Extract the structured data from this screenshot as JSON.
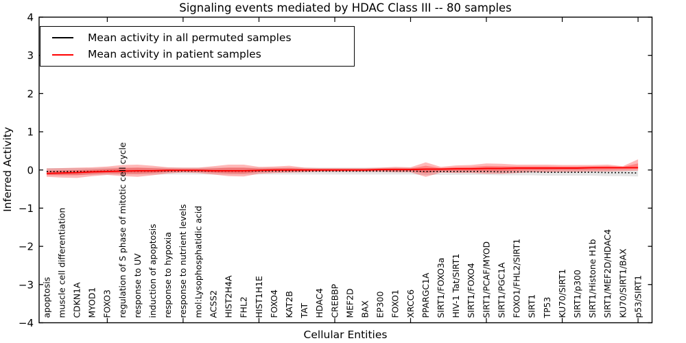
{
  "title": "Signaling events mediated by HDAC Class III -- 80 samples",
  "axes": {
    "ylabel": "Inferred Activity",
    "xlabel": "Cellular Entities",
    "ylim": [
      -4,
      4
    ],
    "ytick_values": [
      -4,
      -3,
      -2,
      -1,
      0,
      1,
      2,
      3,
      4
    ],
    "ytick_labels": [
      "−4",
      "−3",
      "−2",
      "−1",
      "0",
      "1",
      "2",
      "3",
      "4"
    ]
  },
  "legend": {
    "entries": [
      {
        "label": "Mean activity in all permuted samples",
        "color": "#000000"
      },
      {
        "label": "Mean activity in patient samples",
        "color": "#ff0000"
      }
    ]
  },
  "chart_data": {
    "type": "line",
    "title": "Signaling events mediated by HDAC Class III -- 80 samples",
    "xlabel": "Cellular Entities",
    "ylabel": "Inferred Activity",
    "ylim": [
      -4,
      4
    ],
    "grid": false,
    "legend_position": "upper left",
    "x_major_tick_every": 5,
    "categories": [
      "apoptosis",
      "muscle cell differentiation",
      "CDKN1A",
      "MYOD1",
      "FOXO3",
      "regulation of S phase of mitotic cell cycle",
      "response to UV",
      "induction of apoptosis",
      "response to hypoxia",
      "response to nutrient levels",
      "mol:Lysophosphatidic acid",
      "ACSS2",
      "HIST2H4A",
      "FHL2",
      "HIST1H1E",
      "FOXO4",
      "KAT2B",
      "TAT",
      "HDAC4",
      "CREBBP",
      "MEF2D",
      "BAX",
      "EP300",
      "FOXO1",
      "XRCC6",
      "PPARGC1A",
      "SIRT1/FOXO3a",
      "HIV-1 Tat/SIRT1",
      "SIRT1/FOXO4",
      "SIRT1/PCAF/MYOD",
      "SIRT1/PGC1A",
      "FOXO1/FHL2/SIRT1",
      "SIRT1",
      "TP53",
      "KU70/SIRT1",
      "SIRT1/p300",
      "SIRT1/Histone H1b",
      "SIRT1/MEF2D/HDAC4",
      "KU70/SIRT1/BAX",
      "p53/SIRT1"
    ],
    "series": [
      {
        "name": "Mean activity in all permuted samples",
        "color": "#000000",
        "linestyle": "dotted",
        "values": [
          -0.04,
          -0.04,
          -0.04,
          -0.04,
          -0.03,
          -0.03,
          -0.03,
          -0.03,
          -0.03,
          -0.03,
          -0.03,
          -0.03,
          -0.03,
          -0.03,
          -0.03,
          -0.03,
          -0.03,
          -0.03,
          -0.03,
          -0.03,
          -0.03,
          -0.03,
          -0.03,
          -0.03,
          -0.03,
          -0.04,
          -0.04,
          -0.04,
          -0.04,
          -0.04,
          -0.05,
          -0.05,
          -0.05,
          -0.06,
          -0.06,
          -0.06,
          -0.06,
          -0.07,
          -0.07,
          -0.08
        ]
      },
      {
        "name": "Mean activity in patient samples",
        "color": "#ff0000",
        "linestyle": "solid",
        "values": [
          -0.09,
          -0.08,
          -0.07,
          -0.05,
          -0.04,
          -0.03,
          -0.02,
          -0.02,
          -0.01,
          -0.01,
          -0.01,
          -0.02,
          -0.02,
          -0.02,
          -0.01,
          0,
          0,
          0,
          0,
          0,
          0,
          0,
          0.01,
          0.01,
          0.01,
          0.02,
          0.02,
          0.03,
          0.03,
          0.04,
          0.04,
          0.05,
          0.05,
          0.05,
          0.05,
          0.05,
          0.06,
          0.06,
          0.06,
          0.06
        ]
      }
    ],
    "bands": [
      {
        "name": "permuted samples spread",
        "color": "#888888",
        "opacity": 0.22,
        "center_series": 0,
        "half_width": 0.09
      },
      {
        "name": "patient samples spread",
        "color": "#ff0000",
        "opacity": 0.28,
        "lower": [
          -0.18,
          -0.2,
          -0.21,
          -0.16,
          -0.13,
          -0.16,
          -0.18,
          -0.14,
          -0.09,
          -0.07,
          -0.08,
          -0.12,
          -0.16,
          -0.17,
          -0.1,
          -0.08,
          -0.07,
          -0.06,
          -0.05,
          -0.05,
          -0.05,
          -0.05,
          -0.05,
          -0.06,
          -0.06,
          -0.18,
          -0.07,
          -0.08,
          -0.08,
          -0.1,
          -0.1,
          -0.08,
          -0.06,
          -0.06,
          -0.05,
          -0.05,
          -0.04,
          -0.04,
          -0.03,
          -0.02
        ],
        "upper": [
          0.04,
          0.05,
          0.06,
          0.07,
          0.09,
          0.13,
          0.14,
          0.11,
          0.07,
          0.06,
          0.06,
          0.1,
          0.14,
          0.14,
          0.08,
          0.09,
          0.11,
          0.06,
          0.05,
          0.05,
          0.05,
          0.05,
          0.06,
          0.08,
          0.07,
          0.2,
          0.08,
          0.12,
          0.13,
          0.17,
          0.16,
          0.14,
          0.14,
          0.14,
          0.13,
          0.13,
          0.13,
          0.14,
          0.1,
          0.28
        ]
      }
    ]
  }
}
